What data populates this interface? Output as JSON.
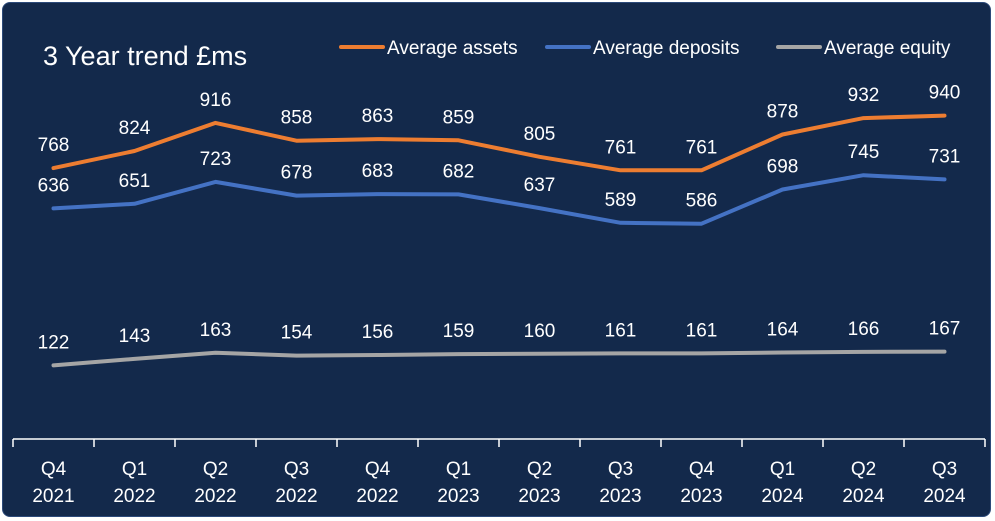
{
  "chart_data": {
    "type": "line",
    "title": "3 Year  trend £ms",
    "categories": [
      [
        "Q4",
        "2021"
      ],
      [
        "Q1",
        "2022"
      ],
      [
        "Q2",
        "2022"
      ],
      [
        "Q3",
        "2022"
      ],
      [
        "Q4",
        "2022"
      ],
      [
        "Q1",
        "2023"
      ],
      [
        "Q2",
        "2023"
      ],
      [
        "Q3",
        "2023"
      ],
      [
        "Q4",
        "2023"
      ],
      [
        "Q1",
        "2024"
      ],
      [
        "Q2",
        "2024"
      ],
      [
        "Q3",
        "2024"
      ]
    ],
    "series": [
      {
        "name": "Average assets",
        "color": "#ed7d31",
        "values": [
          768,
          824,
          916,
          858,
          863,
          859,
          805,
          761,
          761,
          878,
          932,
          940
        ]
      },
      {
        "name": "Average deposits",
        "color": "#4472c4",
        "values": [
          636,
          651,
          723,
          678,
          683,
          682,
          637,
          589,
          586,
          698,
          745,
          731
        ]
      },
      {
        "name": "Average equity",
        "color": "#a5a5a5",
        "values": [
          122,
          143,
          163,
          154,
          156,
          159,
          160,
          161,
          161,
          164,
          166,
          167
        ]
      }
    ],
    "legend_position": "top-right",
    "xlabel": "",
    "ylabel": "",
    "grid": false,
    "data_labels": true
  },
  "colors": {
    "background": "#13294b",
    "text": "#ffffff",
    "axis": "#ffffff"
  }
}
